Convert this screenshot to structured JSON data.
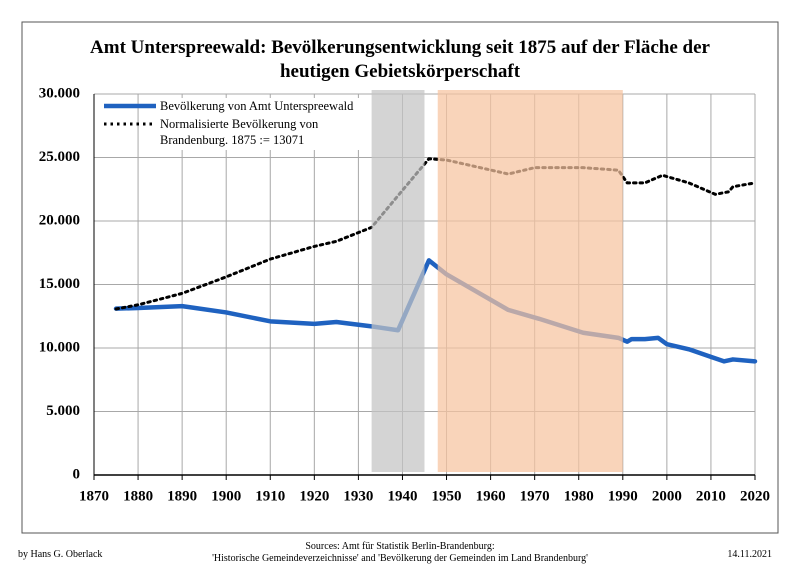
{
  "chart_data": {
    "type": "line",
    "title": "Amt Unterspreewald: Bevölkerungsentwicklung seit 1875 auf der Fläche der heutigen Gebietskörperschaft",
    "xlim": [
      1870,
      2020
    ],
    "xticks": [
      1870,
      1880,
      1890,
      1900,
      1910,
      1920,
      1930,
      1940,
      1950,
      1960,
      1970,
      1980,
      1990,
      2000,
      2010,
      2020
    ],
    "ylim": [
      0,
      30000
    ],
    "yticks": [
      {
        "value": 0,
        "label": "0"
      },
      {
        "value": 5000,
        "label": "5.000"
      },
      {
        "value": 10000,
        "label": "10.000"
      },
      {
        "value": 15000,
        "label": "15.000"
      },
      {
        "value": 20000,
        "label": "20.000"
      },
      {
        "value": 25000,
        "label": "25.000"
      },
      {
        "value": 30000,
        "label": "30.000"
      }
    ],
    "grid": true,
    "shaded_periods": [
      {
        "start": 1933,
        "end": 1945,
        "color": "#c4c4c4"
      },
      {
        "start": 1948,
        "end": 1990,
        "color": "#f6c4a0"
      }
    ],
    "series": [
      {
        "name": "Bevölkerung von Amt Unterspreewald",
        "color": "#1f62c0",
        "style": "solid",
        "x": [
          1875,
          1880,
          1890,
          1900,
          1910,
          1920,
          1925,
          1933,
          1939,
          1946,
          1950,
          1964,
          1971,
          1981,
          1989,
          1991,
          1992,
          1995,
          1998,
          2000,
          2005,
          2010,
          2013,
          2015,
          2020
        ],
        "values": [
          13100,
          13150,
          13300,
          12800,
          12100,
          11900,
          12050,
          11700,
          11400,
          16900,
          15800,
          13000,
          12300,
          11200,
          10800,
          10500,
          10700,
          10700,
          10800,
          10300,
          9900,
          9300,
          8950,
          9100,
          8950
        ]
      },
      {
        "name": "Normalisierte Bevölkerung von Brandenburg. 1875 := 13071",
        "color": "#000000",
        "style": "dotted",
        "x": [
          1875,
          1880,
          1890,
          1900,
          1910,
          1920,
          1925,
          1933,
          1939,
          1946,
          1950,
          1964,
          1970,
          1981,
          1989,
          1991,
          1995,
          1999,
          2005,
          2011,
          2014,
          2015,
          2020
        ],
        "values": [
          13071,
          13400,
          14300,
          15600,
          17000,
          18000,
          18400,
          19500,
          22000,
          24900,
          24800,
          23700,
          24200,
          24200,
          24000,
          23000,
          23000,
          23600,
          23000,
          22100,
          22300,
          22700,
          23000
        ]
      }
    ],
    "footer": {
      "author": "by Hans G. Oberlack",
      "sources": [
        "Sources: Amt für Statistik Berlin-Brandenburg:",
        "'Historische Gemeindeverzeichnisse' and 'Bevölkerung der Gemeinden im Land Brandenburg'"
      ],
      "date": "14.11.2021"
    }
  }
}
